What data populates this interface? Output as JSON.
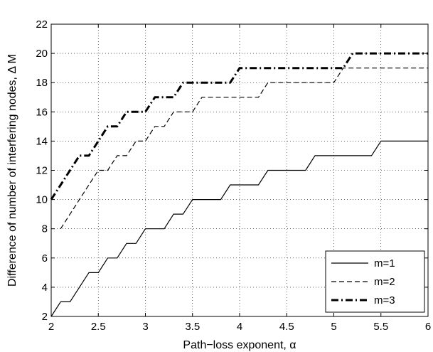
{
  "chart_data": {
    "type": "line",
    "xlabel": "Path−loss exponent, α",
    "ylabel": "Difference of number of interfering nodes, Δ M",
    "xlim": [
      2,
      6
    ],
    "ylim": [
      2,
      22
    ],
    "x_ticks": [
      2,
      2.5,
      3,
      3.5,
      4,
      4.5,
      5,
      5.5,
      6
    ],
    "x_tick_labels": [
      "2",
      "2.5",
      "3",
      "3.5",
      "4",
      "4.5",
      "5",
      "5.5",
      "6"
    ],
    "y_ticks": [
      2,
      4,
      6,
      8,
      10,
      12,
      14,
      16,
      18,
      20,
      22
    ],
    "y_tick_labels": [
      "2",
      "4",
      "6",
      "8",
      "10",
      "12",
      "14",
      "16",
      "18",
      "20",
      "22"
    ],
    "grid": true,
    "legend_position": "bottom-right",
    "series": [
      {
        "name": "m=1",
        "style": "solid",
        "color": "#000000",
        "x": [
          2.0,
          2.1,
          2.2,
          2.3,
          2.4,
          2.5,
          2.6,
          2.7,
          2.8,
          2.9,
          3.0,
          3.1,
          3.2,
          3.3,
          3.4,
          3.5,
          3.6,
          3.7,
          3.8,
          3.9,
          4.0,
          4.1,
          4.2,
          4.3,
          4.4,
          4.5,
          4.6,
          4.7,
          4.8,
          4.9,
          5.0,
          5.1,
          5.2,
          5.3,
          5.4,
          5.5,
          5.6,
          5.7,
          5.8,
          5.9,
          6.0
        ],
        "y": [
          2,
          3,
          3,
          4,
          5,
          5,
          6,
          6,
          7,
          7,
          8,
          8,
          8,
          9,
          9,
          10,
          10,
          10,
          10,
          11,
          11,
          11,
          11,
          12,
          12,
          12,
          12,
          12,
          13,
          13,
          13,
          13,
          13,
          13,
          13,
          14,
          14,
          14,
          14,
          14,
          14
        ]
      },
      {
        "name": "m=2",
        "style": "dashed",
        "color": "#000000",
        "x": [
          2.1,
          2.2,
          2.3,
          2.4,
          2.5,
          2.6,
          2.7,
          2.8,
          2.9,
          3.0,
          3.1,
          3.2,
          3.3,
          3.4,
          3.5,
          3.6,
          3.7,
          3.8,
          3.9,
          4.0,
          4.1,
          4.2,
          4.3,
          4.4,
          4.5,
          4.6,
          4.7,
          4.8,
          4.9,
          5.0,
          5.1,
          5.2,
          5.3,
          5.4,
          5.5,
          5.6,
          5.7,
          5.8,
          5.9,
          6.0
        ],
        "y": [
          8,
          9,
          10,
          11,
          12,
          12,
          13,
          13,
          14,
          14,
          15,
          15,
          16,
          16,
          16,
          17,
          17,
          17,
          17,
          17,
          17,
          17,
          18,
          18,
          18,
          18,
          18,
          18,
          18,
          18,
          19,
          19,
          19,
          19,
          19,
          19,
          19,
          19,
          19,
          19
        ]
      },
      {
        "name": "m=3",
        "style": "dash-dot",
        "color": "#000000",
        "x": [
          2.0,
          2.1,
          2.2,
          2.3,
          2.4,
          2.5,
          2.6,
          2.7,
          2.8,
          2.9,
          3.0,
          3.1,
          3.2,
          3.3,
          3.4,
          3.5,
          3.6,
          3.7,
          3.8,
          3.9,
          4.0,
          4.1,
          4.2,
          4.3,
          4.4,
          4.5,
          4.6,
          4.7,
          4.8,
          4.9,
          5.0,
          5.1,
          5.2,
          5.3,
          5.4,
          5.5,
          5.6,
          5.7,
          5.8,
          5.9,
          6.0
        ],
        "y": [
          10,
          11,
          12,
          13,
          13,
          14,
          15,
          15,
          16,
          16,
          16,
          17,
          17,
          17,
          18,
          18,
          18,
          18,
          18,
          18,
          19,
          19,
          19,
          19,
          19,
          19,
          19,
          19,
          19,
          19,
          19,
          19,
          20,
          20,
          20,
          20,
          20,
          20,
          20,
          20,
          20
        ]
      }
    ]
  }
}
